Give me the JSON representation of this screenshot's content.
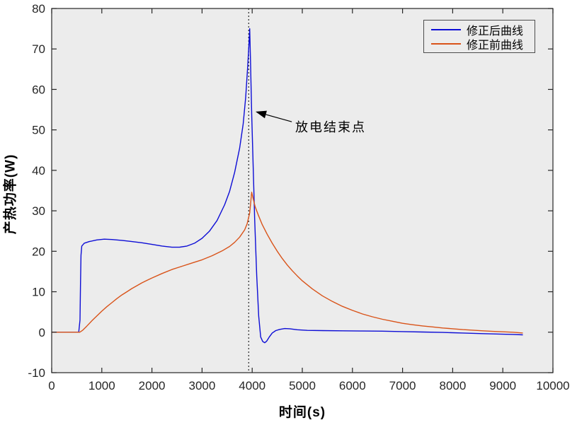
{
  "chart_data": {
    "type": "line",
    "title": "",
    "xlabel": "时间(s)",
    "ylabel": "产热功率(W)",
    "xlim": [
      0,
      10000
    ],
    "ylim": [
      -10,
      80
    ],
    "xticks": [
      0,
      1000,
      2000,
      3000,
      4000,
      5000,
      6000,
      7000,
      8000,
      9000,
      10000
    ],
    "yticks": [
      -10,
      0,
      10,
      20,
      30,
      40,
      50,
      60,
      70,
      80
    ],
    "grid": false,
    "plot_bg": "#ececec",
    "axis_color": "#262626",
    "legend_position": "top-right",
    "vline": {
      "x": 3930,
      "style": "dotted",
      "color": "#000000"
    },
    "annotation": {
      "text": "放电结束点",
      "arrow_tip": {
        "t": 4068,
        "w": 54.5
      },
      "arrow_tail": {
        "t": 4790,
        "w": 52.0
      },
      "arrow_color": "#000000"
    },
    "series": [
      {
        "name": "修正后曲线",
        "color": "#0d0dd6",
        "x": [
          0,
          200,
          400,
          540,
          565,
          575,
          585,
          600,
          650,
          750,
          900,
          1050,
          1200,
          1400,
          1600,
          1800,
          2000,
          2200,
          2400,
          2550,
          2700,
          2850,
          3000,
          3150,
          3300,
          3450,
          3550,
          3650,
          3750,
          3820,
          3870,
          3910,
          3935,
          3950,
          3965,
          3990,
          4020,
          4050,
          4090,
          4130,
          4170,
          4210,
          4250,
          4290,
          4340,
          4400,
          4470,
          4550,
          4650,
          4750,
          4900,
          5100,
          5400,
          5800,
          6200,
          6600,
          7000,
          7400,
          7800,
          8200,
          8600,
          9000,
          9200,
          9400
        ],
        "y": [
          0,
          0,
          0,
          0,
          3,
          12,
          19,
          21.3,
          22.0,
          22.4,
          22.8,
          23.0,
          22.9,
          22.7,
          22.4,
          22.1,
          21.7,
          21.3,
          21.0,
          21.0,
          21.3,
          22.0,
          23.2,
          25.0,
          27.6,
          31.5,
          34.8,
          39.5,
          45.5,
          51.5,
          58,
          65.5,
          71,
          75,
          68,
          54,
          41,
          28,
          14,
          4,
          -1.2,
          -2.3,
          -2.6,
          -2.2,
          -1.2,
          -0.2,
          0.4,
          0.7,
          0.9,
          0.85,
          0.6,
          0.45,
          0.4,
          0.35,
          0.3,
          0.25,
          0.15,
          0.05,
          -0.05,
          -0.2,
          -0.35,
          -0.5,
          -0.55,
          -0.65
        ]
      },
      {
        "name": "修正前曲线",
        "color": "#d95319",
        "x": [
          0,
          200,
          400,
          560,
          620,
          700,
          800,
          900,
          1000,
          1100,
          1200,
          1300,
          1400,
          1500,
          1600,
          1700,
          1800,
          1900,
          2000,
          2200,
          2400,
          2600,
          2800,
          3000,
          3200,
          3400,
          3550,
          3650,
          3750,
          3850,
          3900,
          3950,
          3990,
          4020,
          4060,
          4120,
          4200,
          4300,
          4400,
          4500,
          4600,
          4700,
          4800,
          4900,
          5000,
          5200,
          5400,
          5600,
          5800,
          6000,
          6200,
          6400,
          6600,
          6800,
          7000,
          7200,
          7400,
          7600,
          7800,
          8000,
          8200,
          8400,
          8600,
          8800,
          9000,
          9200,
          9400
        ],
        "y": [
          0,
          0,
          0,
          0,
          0.5,
          1.5,
          2.8,
          4.0,
          5.2,
          6.3,
          7.3,
          8.3,
          9.2,
          10.0,
          10.8,
          11.5,
          12.2,
          12.8,
          13.4,
          14.5,
          15.5,
          16.3,
          17.1,
          17.9,
          18.9,
          20.1,
          21.2,
          22.2,
          23.5,
          25.3,
          26.8,
          29.5,
          34.6,
          33.0,
          31.0,
          29.0,
          26.6,
          24.2,
          22.0,
          20.0,
          18.2,
          16.6,
          15.2,
          13.9,
          12.7,
          10.7,
          9.0,
          7.6,
          6.4,
          5.4,
          4.5,
          3.8,
          3.2,
          2.7,
          2.2,
          1.85,
          1.55,
          1.3,
          1.05,
          0.85,
          0.65,
          0.5,
          0.35,
          0.2,
          0.1,
          0.0,
          -0.2
        ]
      }
    ]
  }
}
